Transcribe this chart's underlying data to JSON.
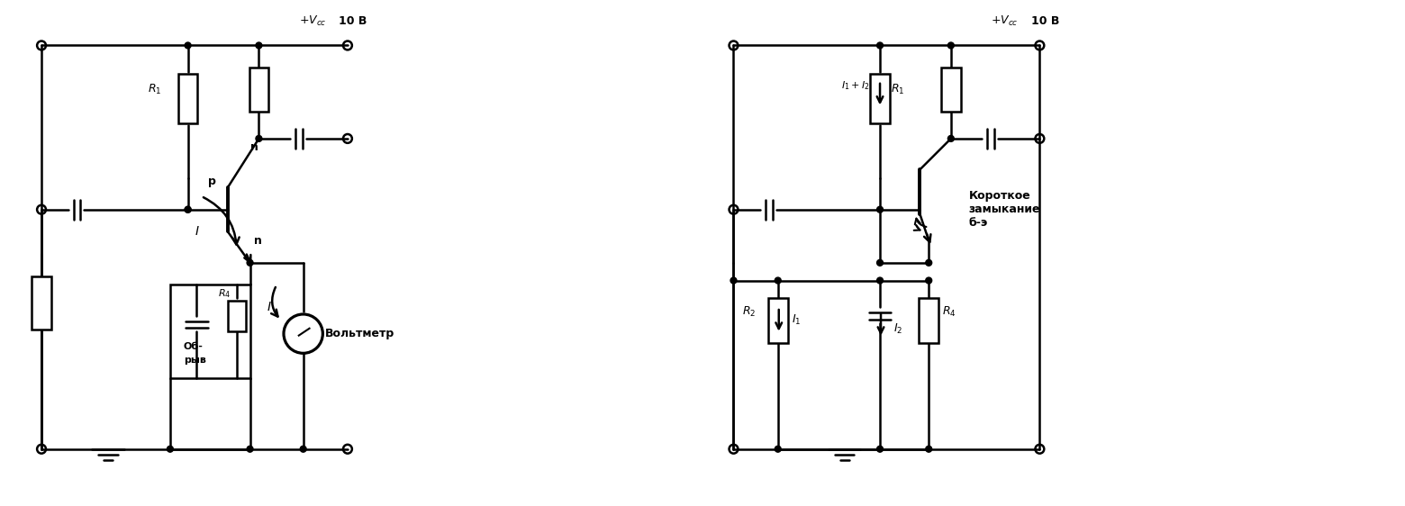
{
  "bg_color": "#ffffff",
  "line_color": "#000000",
  "lw": 1.8,
  "tlw": 2.8,
  "fig_width": 15.6,
  "fig_height": 5.62,
  "texts": {
    "vcc_left": "+$V_{cc}$  10 B",
    "vcc_right": "+$V_{cc}$  10 B",
    "R1_left": "$R_1$",
    "R1_right": "$R_1$",
    "R2_right": "$R_2$",
    "R4_left": "$R_4$",
    "R4_right": "$R_4$",
    "obriv": "Об-\nрыв",
    "voltmetr": "Вольтметр",
    "I_left": "$I$",
    "I_voltmetr": "$I$",
    "p_label": "p",
    "n1_label": "n",
    "n2_label": "n",
    "I1_label": "$I_1$",
    "I2_label": "$I_2$",
    "I1I2_label": "$I_1 + I_2$",
    "korotkoe": "Короткое\nзамыкание\nб-э"
  }
}
